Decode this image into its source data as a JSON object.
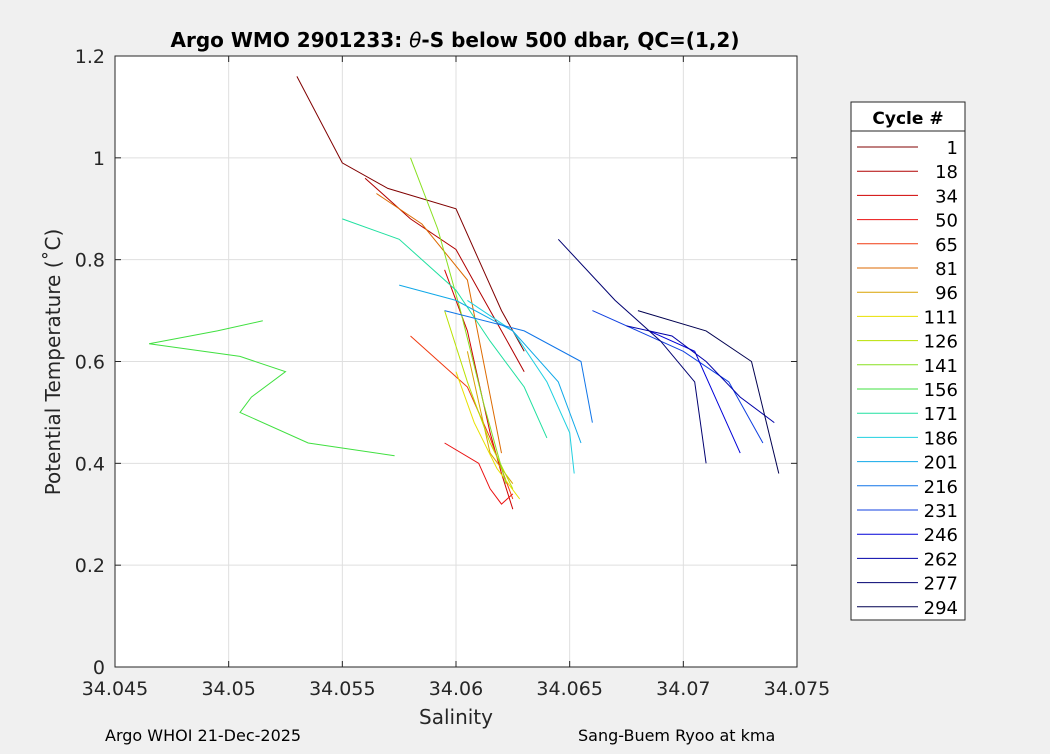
{
  "footer": {
    "left": "Argo WHOI 21-Dec-2025",
    "right": "Sang-Buem Ryoo at kma"
  },
  "chart_data": {
    "type": "line",
    "title": "Argo WMO 2901233: θ-S below 500 dbar,  QC=(1,2)",
    "title_parts": {
      "prefix": "Argo WMO 2901233: ",
      "theta": "θ",
      "suffix": "-S below 500 dbar,  QC=(1,2)"
    },
    "xlabel": "Salinity",
    "ylabel": "Potential Temperature (˚C)",
    "xlim": [
      34.045,
      34.075
    ],
    "ylim": [
      0,
      1.2
    ],
    "xticks": [
      34.045,
      34.05,
      34.055,
      34.06,
      34.065,
      34.07,
      34.075
    ],
    "xtick_labels": [
      "34.045",
      "34.05",
      "34.055",
      "34.06",
      "34.065",
      "34.07",
      "34.075"
    ],
    "yticks": [
      0,
      0.2,
      0.4,
      0.6,
      0.8,
      1,
      1.2
    ],
    "ytick_labels": [
      "0",
      "0.2",
      "0.4",
      "0.6",
      "0.8",
      "1",
      "1.2"
    ],
    "grid": true,
    "legend_title": "Cycle #",
    "legend_position": "outside right",
    "series": [
      {
        "name": "1",
        "color": "#800000",
        "x": [
          34.053,
          34.055,
          34.057,
          34.06,
          34.061,
          34.062,
          34.063
        ],
        "y": [
          1.16,
          0.99,
          0.94,
          0.9,
          0.8,
          0.7,
          0.62
        ]
      },
      {
        "name": "18",
        "color": "#b00000",
        "x": [
          34.056,
          34.058,
          34.06,
          34.061,
          34.062,
          34.063
        ],
        "y": [
          0.96,
          0.88,
          0.82,
          0.74,
          0.66,
          0.58
        ]
      },
      {
        "name": "34",
        "color": "#d00000",
        "x": [
          34.0595,
          34.0605,
          34.061,
          34.0615,
          34.062,
          34.0625
        ],
        "y": [
          0.78,
          0.66,
          0.56,
          0.46,
          0.38,
          0.31
        ]
      },
      {
        "name": "50",
        "color": "#ea1010",
        "x": [
          34.0595,
          34.061,
          34.0615,
          34.062,
          34.0625
        ],
        "y": [
          0.44,
          0.4,
          0.35,
          0.32,
          0.34
        ]
      },
      {
        "name": "65",
        "color": "#f03a10",
        "x": [
          34.058,
          34.0605,
          34.0615,
          34.0625
        ],
        "y": [
          0.65,
          0.55,
          0.45,
          0.33
        ]
      },
      {
        "name": "81",
        "color": "#dd6a00",
        "x": [
          34.0565,
          34.0585,
          34.0605,
          34.062
        ],
        "y": [
          0.93,
          0.87,
          0.76,
          0.42
        ]
      },
      {
        "name": "96",
        "color": "#d9a200",
        "x": [
          34.0605,
          34.061,
          34.0615,
          34.0625
        ],
        "y": [
          0.62,
          0.52,
          0.42,
          0.36
        ]
      },
      {
        "name": "111",
        "color": "#e8e000",
        "x": [
          34.06,
          34.0608,
          34.0618,
          34.0628
        ],
        "y": [
          0.58,
          0.48,
          0.39,
          0.33
        ]
      },
      {
        "name": "126",
        "color": "#b8e000",
        "x": [
          34.0595,
          34.0605,
          34.0615,
          34.0625
        ],
        "y": [
          0.7,
          0.56,
          0.44,
          0.35
        ]
      },
      {
        "name": "141",
        "color": "#88e020",
        "x": [
          34.058,
          34.0592,
          34.0602,
          34.0612,
          34.0622
        ],
        "y": [
          1.0,
          0.86,
          0.7,
          0.52,
          0.36
        ]
      },
      {
        "name": "156",
        "color": "#40e040",
        "x": [
          34.0515,
          34.0495,
          34.0465,
          34.0505,
          34.0525,
          34.051,
          34.0505,
          34.0535,
          34.0573
        ],
        "y": [
          0.68,
          0.66,
          0.635,
          0.61,
          0.58,
          0.53,
          0.5,
          0.44,
          0.415
        ]
      },
      {
        "name": "171",
        "color": "#20e0a0",
        "x": [
          34.055,
          34.0575,
          34.06,
          34.0615,
          34.063,
          34.064
        ],
        "y": [
          0.88,
          0.84,
          0.74,
          0.64,
          0.55,
          0.45
        ]
      },
      {
        "name": "186",
        "color": "#20d0e0",
        "x": [
          34.0605,
          34.0625,
          34.064,
          34.065,
          34.0652
        ],
        "y": [
          0.72,
          0.66,
          0.56,
          0.46,
          0.38
        ]
      },
      {
        "name": "201",
        "color": "#10a8e8",
        "x": [
          34.0575,
          34.06,
          34.0625,
          34.0645,
          34.0655
        ],
        "y": [
          0.75,
          0.72,
          0.66,
          0.56,
          0.44
        ]
      },
      {
        "name": "216",
        "color": "#1075e8",
        "x": [
          34.0595,
          34.063,
          34.0655,
          34.066
        ],
        "y": [
          0.7,
          0.66,
          0.6,
          0.48
        ]
      },
      {
        "name": "231",
        "color": "#1040e0",
        "x": [
          34.066,
          34.068,
          34.07,
          34.072,
          34.0735
        ],
        "y": [
          0.7,
          0.66,
          0.62,
          0.56,
          0.44
        ]
      },
      {
        "name": "246",
        "color": "#0000d8",
        "x": [
          34.0685,
          34.0705,
          34.0715,
          34.0725
        ],
        "y": [
          0.66,
          0.62,
          0.52,
          0.42
        ]
      },
      {
        "name": "262",
        "color": "#0000a8",
        "x": [
          34.0675,
          34.0695,
          34.071,
          34.0725,
          34.074
        ],
        "y": [
          0.67,
          0.65,
          0.6,
          0.53,
          0.48
        ]
      },
      {
        "name": "277",
        "color": "#000070",
        "x": [
          34.0645,
          34.067,
          34.069,
          34.0705,
          34.071
        ],
        "y": [
          0.84,
          0.72,
          0.64,
          0.56,
          0.4
        ]
      },
      {
        "name": "294",
        "color": "#000050",
        "x": [
          34.068,
          34.071,
          34.073,
          34.0742
        ],
        "y": [
          0.7,
          0.66,
          0.6,
          0.38
        ]
      }
    ]
  }
}
